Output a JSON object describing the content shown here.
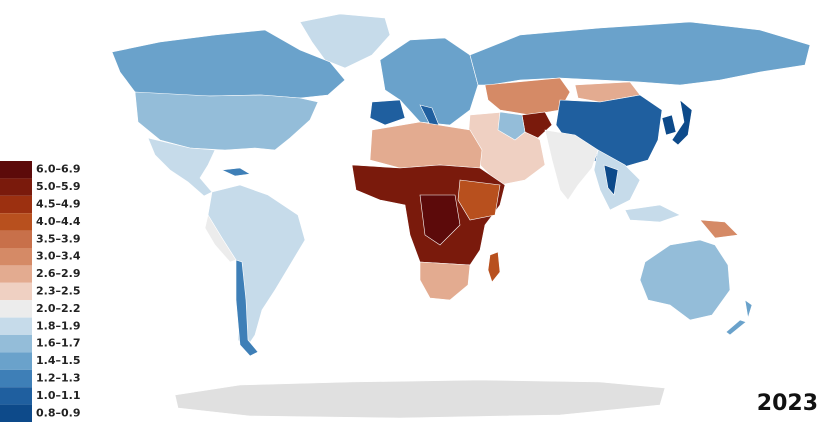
{
  "legend": {
    "items": [
      {
        "label": "6.0–6.9",
        "color": "#5c0a0a"
      },
      {
        "label": "5.0–5.9",
        "color": "#7a1a0c"
      },
      {
        "label": "4.5–4.9",
        "color": "#9c3010"
      },
      {
        "label": "4.0–4.4",
        "color": "#b8501e"
      },
      {
        "label": "3.5–3.9",
        "color": "#c8704a"
      },
      {
        "label": "3.0–3.4",
        "color": "#d58a66"
      },
      {
        "label": "2.6–2.9",
        "color": "#e3ab90"
      },
      {
        "label": "2.3–2.5",
        "color": "#efd0c2"
      },
      {
        "label": "2.0–2.2",
        "color": "#ececec"
      },
      {
        "label": "1.8–1.9",
        "color": "#c6dbea"
      },
      {
        "label": "1.6–1.7",
        "color": "#94bdd9"
      },
      {
        "label": "1.4–1.5",
        "color": "#6aa2cb"
      },
      {
        "label": "1.2–1.3",
        "color": "#3e7fb7"
      },
      {
        "label": "1.0–1.1",
        "color": "#1f5f9f"
      },
      {
        "label": "0.8–0.9",
        "color": "#0d4a8a"
      }
    ]
  },
  "year": "2023"
}
